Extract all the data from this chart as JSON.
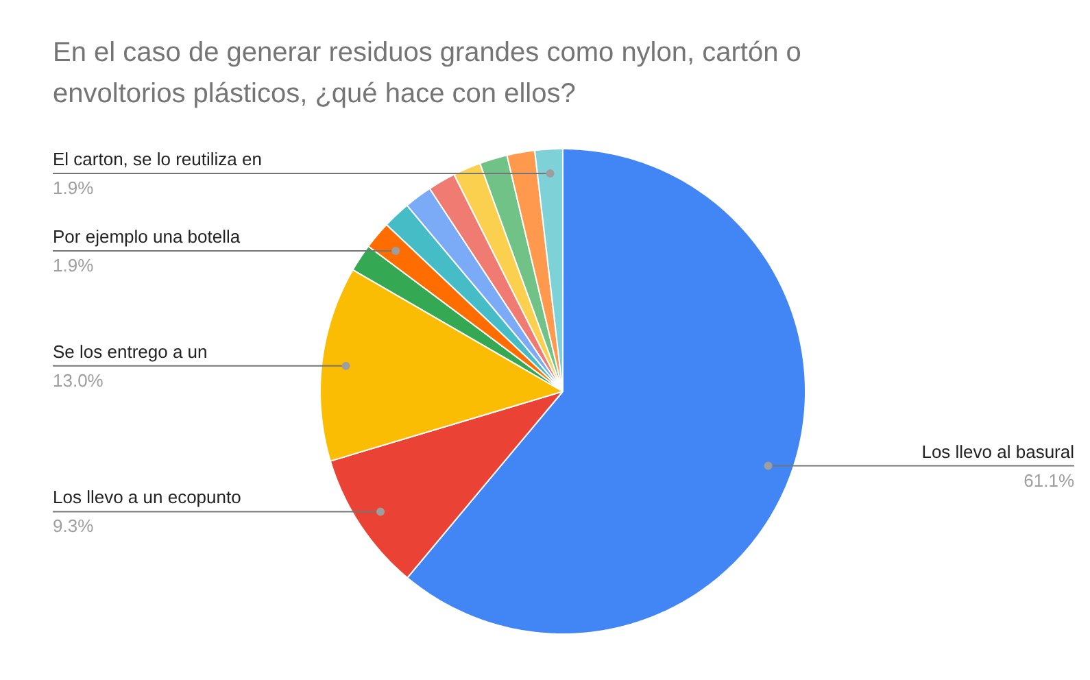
{
  "chart_data": {
    "type": "pie",
    "title": "En el caso de generar residuos grandes como nylon, cartón o envoltorios plásticos, ¿qué hace con ellos?",
    "categories": [
      "Los llevo al basural",
      "Los llevo a un ecopunto",
      "Se los entrego a un",
      null,
      "Por ejemplo una botella",
      null,
      null,
      null,
      null,
      null,
      null,
      "El carton, se lo reutiliza en"
    ],
    "values": [
      61.1,
      9.3,
      13.0,
      1.85,
      1.85,
      1.85,
      1.85,
      1.85,
      1.85,
      1.85,
      1.85,
      1.85
    ],
    "colors": [
      "#4285f4",
      "#ea4335",
      "#fbbc04",
      "#34a853",
      "#ff6d01",
      "#46bdc6",
      "#7baaf7",
      "#f07b72",
      "#fcd04f",
      "#71c287",
      "#ff994d",
      "#7ed1d7"
    ],
    "value_labels": [
      "61.1%",
      "9.3%",
      "13.0%",
      null,
      "1.9%",
      null,
      null,
      null,
      null,
      null,
      null,
      "1.9%"
    ]
  }
}
